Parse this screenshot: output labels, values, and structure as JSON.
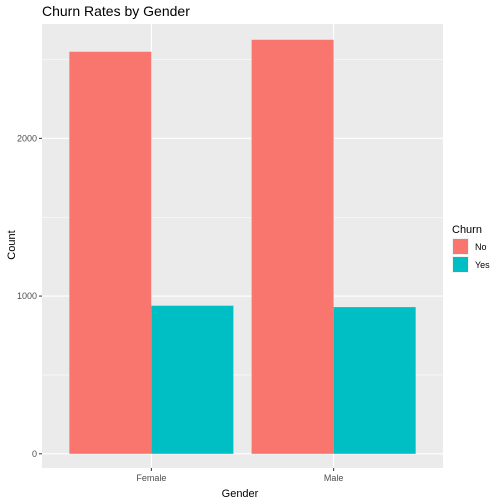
{
  "chart_data": {
    "type": "bar",
    "title": "Churn Rates by Gender",
    "xlabel": "Gender",
    "ylabel": "Count",
    "categories": [
      "Female",
      "Male"
    ],
    "series": [
      {
        "name": "No",
        "values": [
          2549,
          2625
        ],
        "color": "#F8766D"
      },
      {
        "name": "Yes",
        "values": [
          939,
          930
        ],
        "color": "#00BFC4"
      }
    ],
    "ylim": [
      -90,
      2725
    ],
    "yticks": [
      0,
      1000,
      2000
    ],
    "ytick_labels": [
      "0",
      "1000",
      "2000"
    ],
    "legend_title": "Churn",
    "legend_position": "right",
    "grid": true
  }
}
